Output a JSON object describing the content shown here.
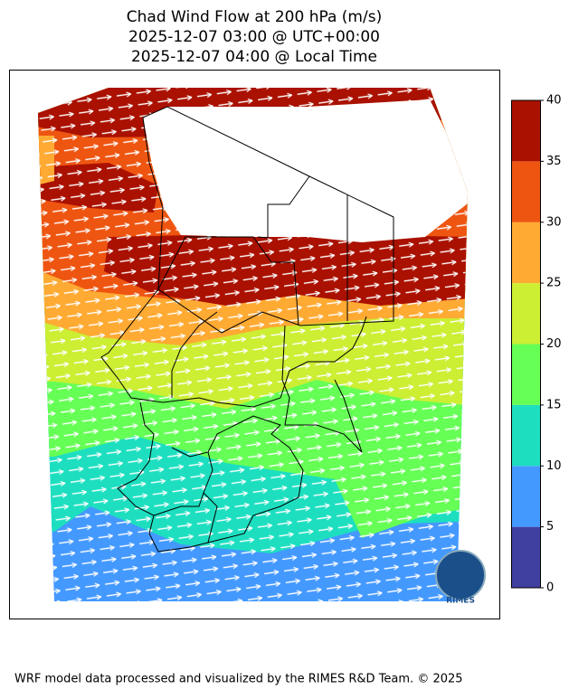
{
  "title": [
    "Chad Wind Flow at 200 hPa (m/s)",
    "2025-12-07 03:00 @ UTC+00:00",
    "2025-12-07 04:00 @ Local Time"
  ],
  "colorbar": {
    "ticks": [
      0,
      5,
      10,
      15,
      20,
      25,
      30,
      35,
      40
    ],
    "colors": [
      "#4040a0",
      "#4499ff",
      "#1ddfc0",
      "#66ff55",
      "#ccee33",
      "#ffaa33",
      "#ee5511",
      "#aa1100"
    ]
  },
  "logo": "RIMES",
  "footer": "WRF model data processed and visualized by the RIMES R&D Team. © 2025"
}
